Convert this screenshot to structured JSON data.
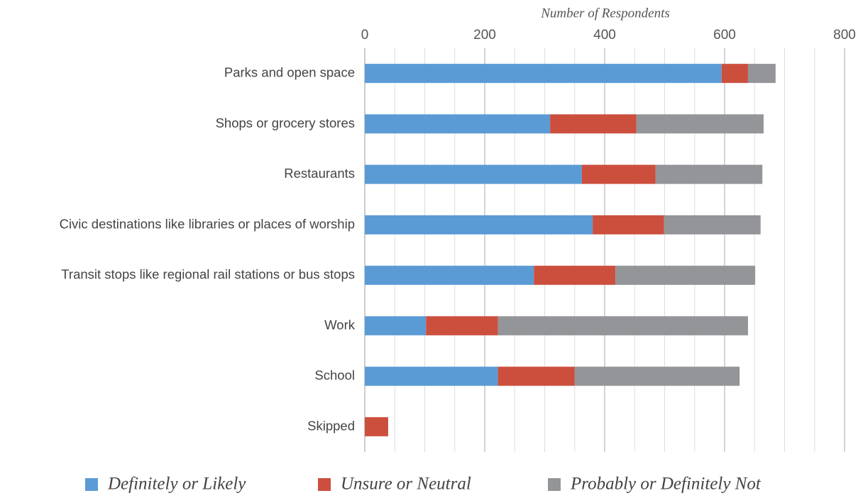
{
  "chart_data": {
    "type": "stacked_barh",
    "x_label": "Number of Respondents",
    "categories": [
      "Parks and open space",
      "Shops or grocery stores",
      "Restaurants",
      "Civic destinations like libraries or places of worship",
      "Transit stops like regional rail stations or bus stops",
      "Work",
      "School",
      "Skipped"
    ],
    "series": [
      {
        "name": "Definitely or Likely",
        "color": "#5b9bd5",
        "values": [
          595,
          309,
          362,
          380,
          282,
          102,
          222,
          0
        ]
      },
      {
        "name": "Unsure or Neutral",
        "color": "#cc4f3e",
        "values": [
          44,
          144,
          123,
          119,
          136,
          120,
          128,
          39
        ]
      },
      {
        "name": "Probably or Definitely Not",
        "color": "#939598",
        "values": [
          46,
          212,
          178,
          161,
          233,
          417,
          275,
          0
        ]
      }
    ],
    "xlim": [
      0,
      800
    ],
    "xticks": [
      0,
      200,
      400,
      600,
      800
    ],
    "minor_xticks": [
      50,
      100,
      150,
      250,
      300,
      350,
      450,
      500,
      550,
      650,
      700,
      750
    ],
    "grid": true,
    "legend": "bottom"
  }
}
